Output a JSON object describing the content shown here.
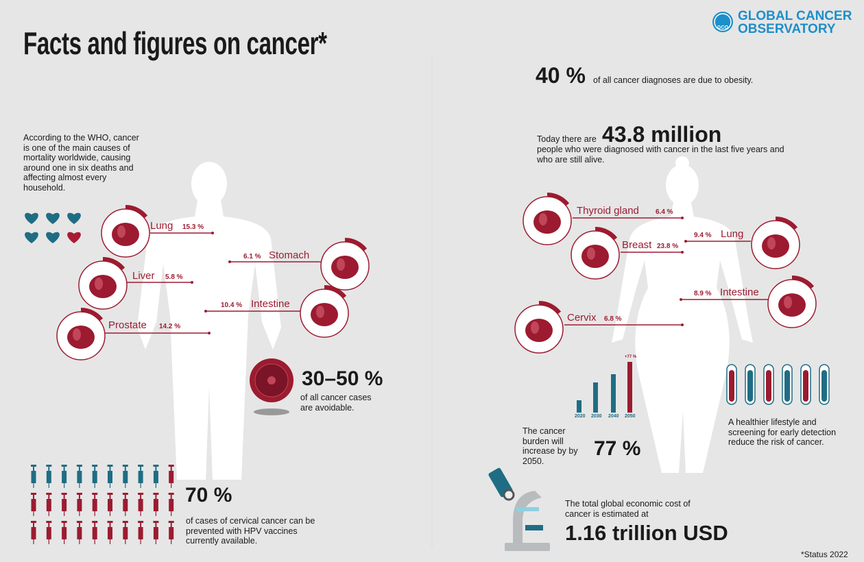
{
  "header": {
    "title": "Facts and figures on cancer*",
    "logo_mark": "GCO",
    "logo": [
      "GLOBAL CANCER",
      "OBSERVATORY"
    ]
  },
  "intro": "According to the WHO, cancer is one of the main causes of mortality worldwide, causing around one in six deaths and affecting almost every household.",
  "male_organs": [
    {
      "name": "Lung",
      "value": "15.3 %"
    },
    {
      "name": "Liver",
      "value": "5.8 %"
    },
    {
      "name": "Prostate",
      "value": "14.2 %"
    },
    {
      "name": "Stomach",
      "value": "6.1 %"
    },
    {
      "name": "Intestine",
      "value": "10.4 %"
    }
  ],
  "female_organs": [
    {
      "name": "Thyroid gland",
      "value": "6.4 %"
    },
    {
      "name": "Breast",
      "value": "23.8 %"
    },
    {
      "name": "Cervix",
      "value": "6.8 %"
    },
    {
      "name": "Lung",
      "value": "9.4 %"
    },
    {
      "name": "Intestine",
      "value": "8.9 %"
    }
  ],
  "avoidable": {
    "figure": "30–50 %",
    "text": "of all cancer cases are avoidable."
  },
  "hpv": {
    "figure": "70 %",
    "text": "of cases of cervical cancer can be prevented with HPV vaccines currently available."
  },
  "obesity": {
    "figure": "40 %",
    "text": "of all cancer diagnoses are due to obesity."
  },
  "survivors": {
    "lead": "Today there are",
    "figure": "43.8 million",
    "text": "people who were diagnosed with cancer in the last five years and who are still alive."
  },
  "burden": {
    "years": [
      "2020",
      "2030",
      "2040",
      "2050"
    ],
    "increase_label": "+77 %",
    "text": "The cancer burden will increase by by 2050.",
    "figure": "77 %"
  },
  "lifestyle": "A healthier lifestyle and screening for early detection reduce the risk of cancer.",
  "cost": {
    "text": "The total global economic cost of cancer is estimated at",
    "figure": "1.16 trillion USD"
  },
  "footnote": "*Status 2022"
}
